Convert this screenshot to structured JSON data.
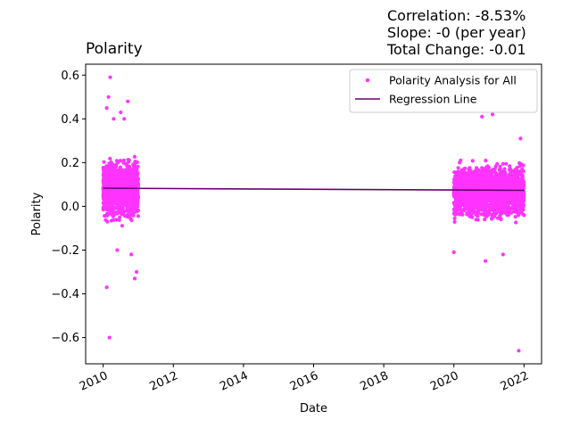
{
  "stats": {
    "correlation": "Correlation: -8.53%",
    "slope": "Slope: -0 (per year)",
    "total_change": "Total Change: -0.01"
  },
  "chart_data": {
    "type": "scatter",
    "title": "Polarity",
    "xlabel": "Date",
    "ylabel": "Polarity",
    "xlim": [
      2009.5,
      2022.5
    ],
    "ylim": [
      -0.72,
      0.65
    ],
    "x_ticks": [
      2010,
      2012,
      2014,
      2016,
      2018,
      2020,
      2022
    ],
    "x_tick_labels": [
      "2010",
      "2012",
      "2014",
      "2016",
      "2018",
      "2020",
      "2022"
    ],
    "y_ticks": [
      -0.6,
      -0.4,
      -0.2,
      0.0,
      0.2,
      0.4,
      0.6
    ],
    "y_tick_labels": [
      "−0.6",
      "−0.4",
      "−0.2",
      "0.0",
      "0.2",
      "0.4",
      "0.6"
    ],
    "grid": false,
    "legend_position": "top-right",
    "colors": {
      "scatter": "#ff33ff",
      "regression": "#6a0070"
    },
    "series": [
      {
        "name": "Polarity Analysis for All",
        "kind": "scatter",
        "clusters": [
          {
            "x_range": [
              2010.0,
              2011.0
            ],
            "center": 0.08,
            "spread": 0.17
          },
          {
            "x_range": [
              2020.0,
              2022.0
            ],
            "center": 0.07,
            "spread": 0.15
          }
        ],
        "points": [
          [
            2010.2,
            0.59
          ],
          [
            2010.15,
            0.5
          ],
          [
            2010.1,
            0.45
          ],
          [
            2010.3,
            0.4
          ],
          [
            2010.7,
            0.48
          ],
          [
            2010.5,
            0.43
          ],
          [
            2010.6,
            0.4
          ],
          [
            2010.1,
            -0.37
          ],
          [
            2010.18,
            -0.6
          ],
          [
            2010.95,
            -0.3
          ],
          [
            2010.9,
            -0.33
          ],
          [
            2010.8,
            -0.22
          ],
          [
            2010.4,
            -0.2
          ],
          [
            2020.8,
            0.41
          ],
          [
            2021.1,
            0.42
          ],
          [
            2021.9,
            0.31
          ],
          [
            2020.0,
            -0.21
          ],
          [
            2020.9,
            -0.25
          ],
          [
            2021.4,
            -0.22
          ],
          [
            2021.85,
            -0.66
          ]
        ]
      },
      {
        "name": "Regression Line",
        "kind": "line",
        "x": [
          2010.0,
          2022.0
        ],
        "y": [
          0.083,
          0.073
        ]
      }
    ]
  }
}
